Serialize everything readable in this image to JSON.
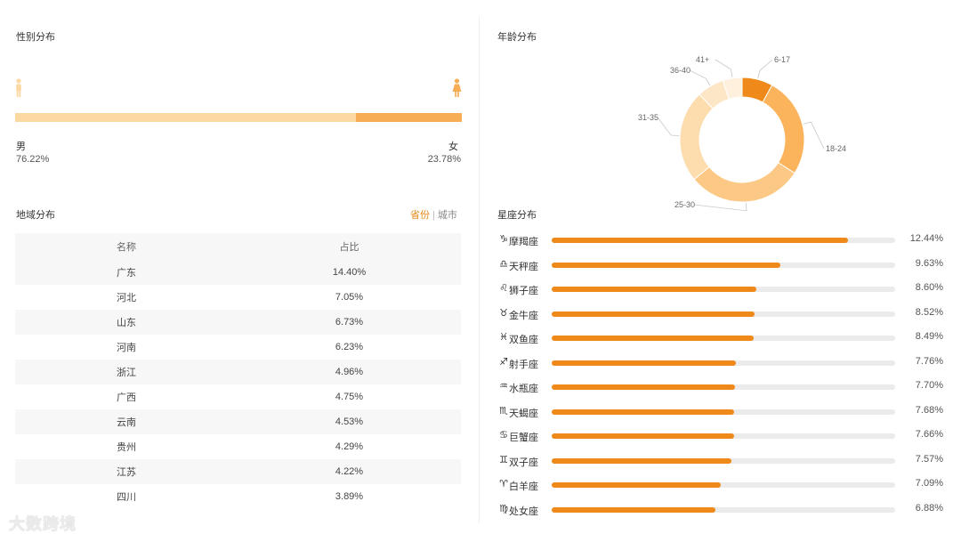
{
  "gender": {
    "title": "性别分布",
    "male_label": "男",
    "male_value": "76.22%",
    "male_pct": 76.22,
    "female_label": "女",
    "female_value": "23.78%",
    "female_pct": 23.78,
    "colors": {
      "male": "#fcd8a3",
      "female": "#f6ad55"
    }
  },
  "age": {
    "title": "年龄分布"
  },
  "region": {
    "title": "地域分布",
    "toggle_province": "省份",
    "toggle_city": "城市",
    "columns": [
      "名称",
      "占比"
    ],
    "rows": [
      {
        "name": "广东",
        "value": "14.40%"
      },
      {
        "name": "河北",
        "value": "7.05%"
      },
      {
        "name": "山东",
        "value": "6.73%"
      },
      {
        "name": "河南",
        "value": "6.23%"
      },
      {
        "name": "浙江",
        "value": "4.96%"
      },
      {
        "name": "广西",
        "value": "4.75%"
      },
      {
        "name": "云南",
        "value": "4.53%"
      },
      {
        "name": "贵州",
        "value": "4.29%"
      },
      {
        "name": "江苏",
        "value": "4.22%"
      },
      {
        "name": "四川",
        "value": "3.89%"
      }
    ]
  },
  "zodiac": {
    "title": "星座分布"
  },
  "watermark": "大数跨境",
  "chart_data": [
    {
      "type": "pie",
      "title": "年龄分布",
      "categories": [
        "6-17",
        "18-24",
        "25-30",
        "31-35",
        "36-40",
        "41+"
      ],
      "values": [
        8,
        26,
        30,
        24,
        7,
        5
      ],
      "colors": [
        "#ef8a1a",
        "#fbb45c",
        "#fcc885",
        "#fddcae",
        "#fde6c5",
        "#fef0dc"
      ]
    },
    {
      "type": "bar",
      "title": "星座分布",
      "orientation": "horizontal",
      "categories": [
        "摩羯座",
        "天秤座",
        "狮子座",
        "金牛座",
        "双鱼座",
        "射手座",
        "水瓶座",
        "天蝎座",
        "巨蟹座",
        "双子座",
        "白羊座",
        "处女座"
      ],
      "symbols": [
        "♑",
        "♎",
        "♌",
        "♉",
        "♓",
        "♐",
        "♒",
        "♏",
        "♋",
        "♊",
        "♈",
        "♍"
      ],
      "values": [
        12.44,
        9.63,
        8.6,
        8.52,
        8.49,
        7.76,
        7.7,
        7.68,
        7.66,
        7.57,
        7.09,
        6.88
      ],
      "labels": [
        "12.44%",
        "9.63%",
        "8.60%",
        "8.52%",
        "8.49%",
        "7.76%",
        "7.70%",
        "7.68%",
        "7.66%",
        "7.57%",
        "7.09%",
        "6.88%"
      ],
      "xlim": [
        0,
        14.44
      ],
      "color": "#ef8a1a"
    }
  ]
}
